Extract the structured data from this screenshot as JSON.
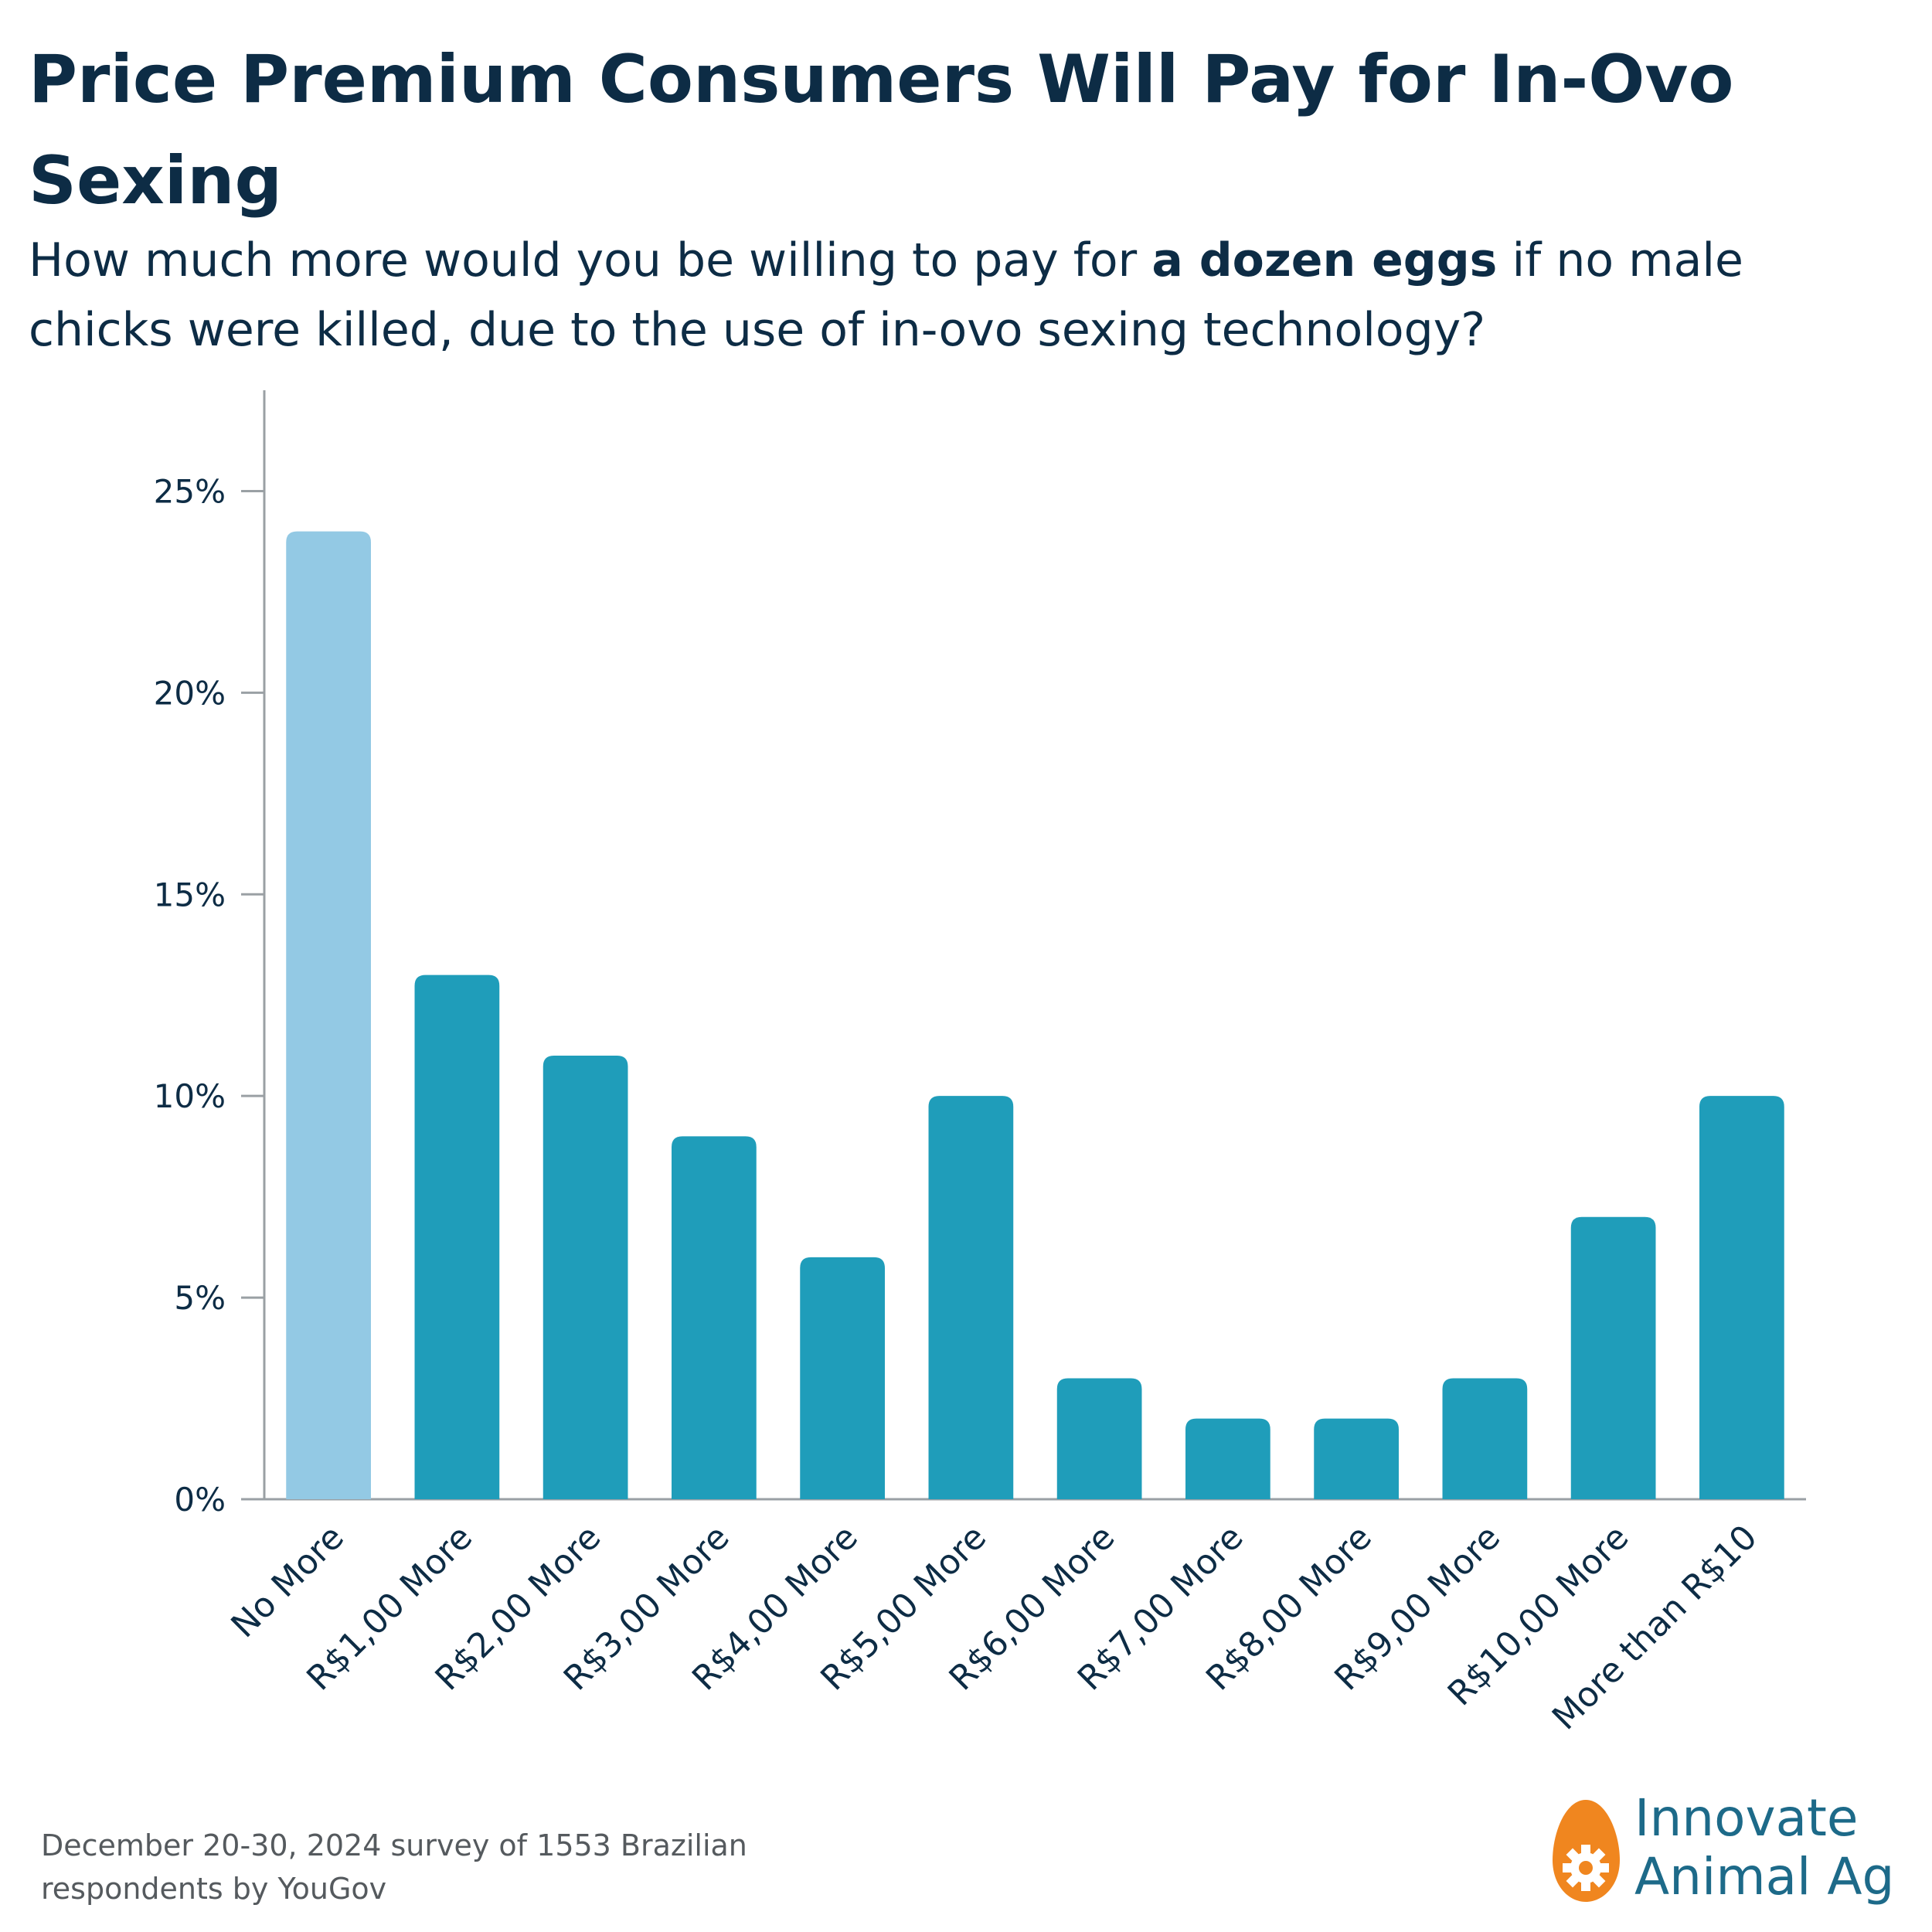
{
  "title": "Price Premium Consumers Will Pay for In-Ovo Sexing",
  "subtitle": {
    "before": "How much more would you be willing to pay for ",
    "emphasis": "a dozen eggs",
    "after": " if no male chicks were killed, due to the use of in-ovo sexing technology?"
  },
  "source": "December 20-30, 2024 survey of 1553 Brazilian respondents by YouGov",
  "logo": {
    "line1": "Innovate",
    "line2": "Animal Ag",
    "icon": "egg-gear-icon",
    "color": "#f0861f",
    "text_color": "#1d6a89"
  },
  "colors": {
    "highlight": "#93c9e4",
    "bar": "#1f9dba",
    "axis": "#9aa0a4",
    "text": "#0d2c45"
  },
  "chart_data": {
    "type": "bar",
    "categories": [
      "No More",
      "R$1,00 More",
      "R$2,00 More",
      "R$3,00 More",
      "R$4,00 More",
      "R$5,00 More",
      "R$6,00 More",
      "R$7,00 More",
      "R$8,00 More",
      "R$9,00 More",
      "R$10,00 More",
      "More than R$10"
    ],
    "values": [
      24,
      13,
      11,
      9,
      6,
      10,
      3,
      2,
      2,
      3,
      7,
      10
    ],
    "highlight_index": 0,
    "yticks": [
      0,
      5,
      10,
      15,
      20,
      25
    ],
    "ytick_labels": [
      "0%",
      "5%",
      "10%",
      "15%",
      "20%",
      "25%"
    ],
    "ylim": [
      0,
      27.5
    ],
    "grid": false,
    "legend": "none"
  }
}
